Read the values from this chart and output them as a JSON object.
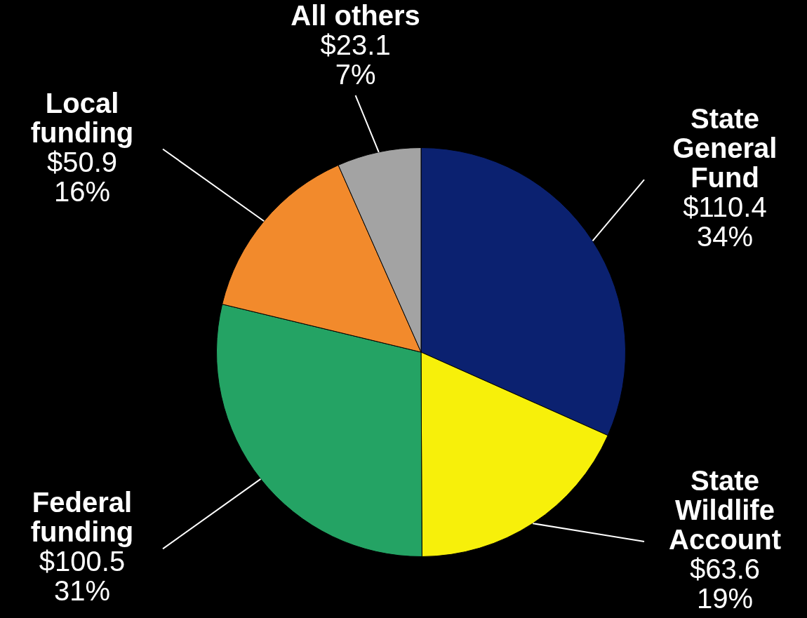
{
  "chart_data": {
    "type": "pie",
    "categories": [
      "State General Fund",
      "State Wildlife Account",
      "Federal funding",
      "Local funding",
      "All others"
    ],
    "values": [
      110.4,
      63.6,
      100.5,
      50.9,
      23.1
    ],
    "colors": [
      "#0b2170",
      "#f7f00a",
      "#24a364",
      "#f28a2c",
      "#a3a3a3"
    ],
    "value_labels": [
      "$110.4\n34%",
      "$63.6\n19%",
      "$100.5\n31%",
      "$50.9\n16%",
      "$23.1\n7%"
    ]
  }
}
